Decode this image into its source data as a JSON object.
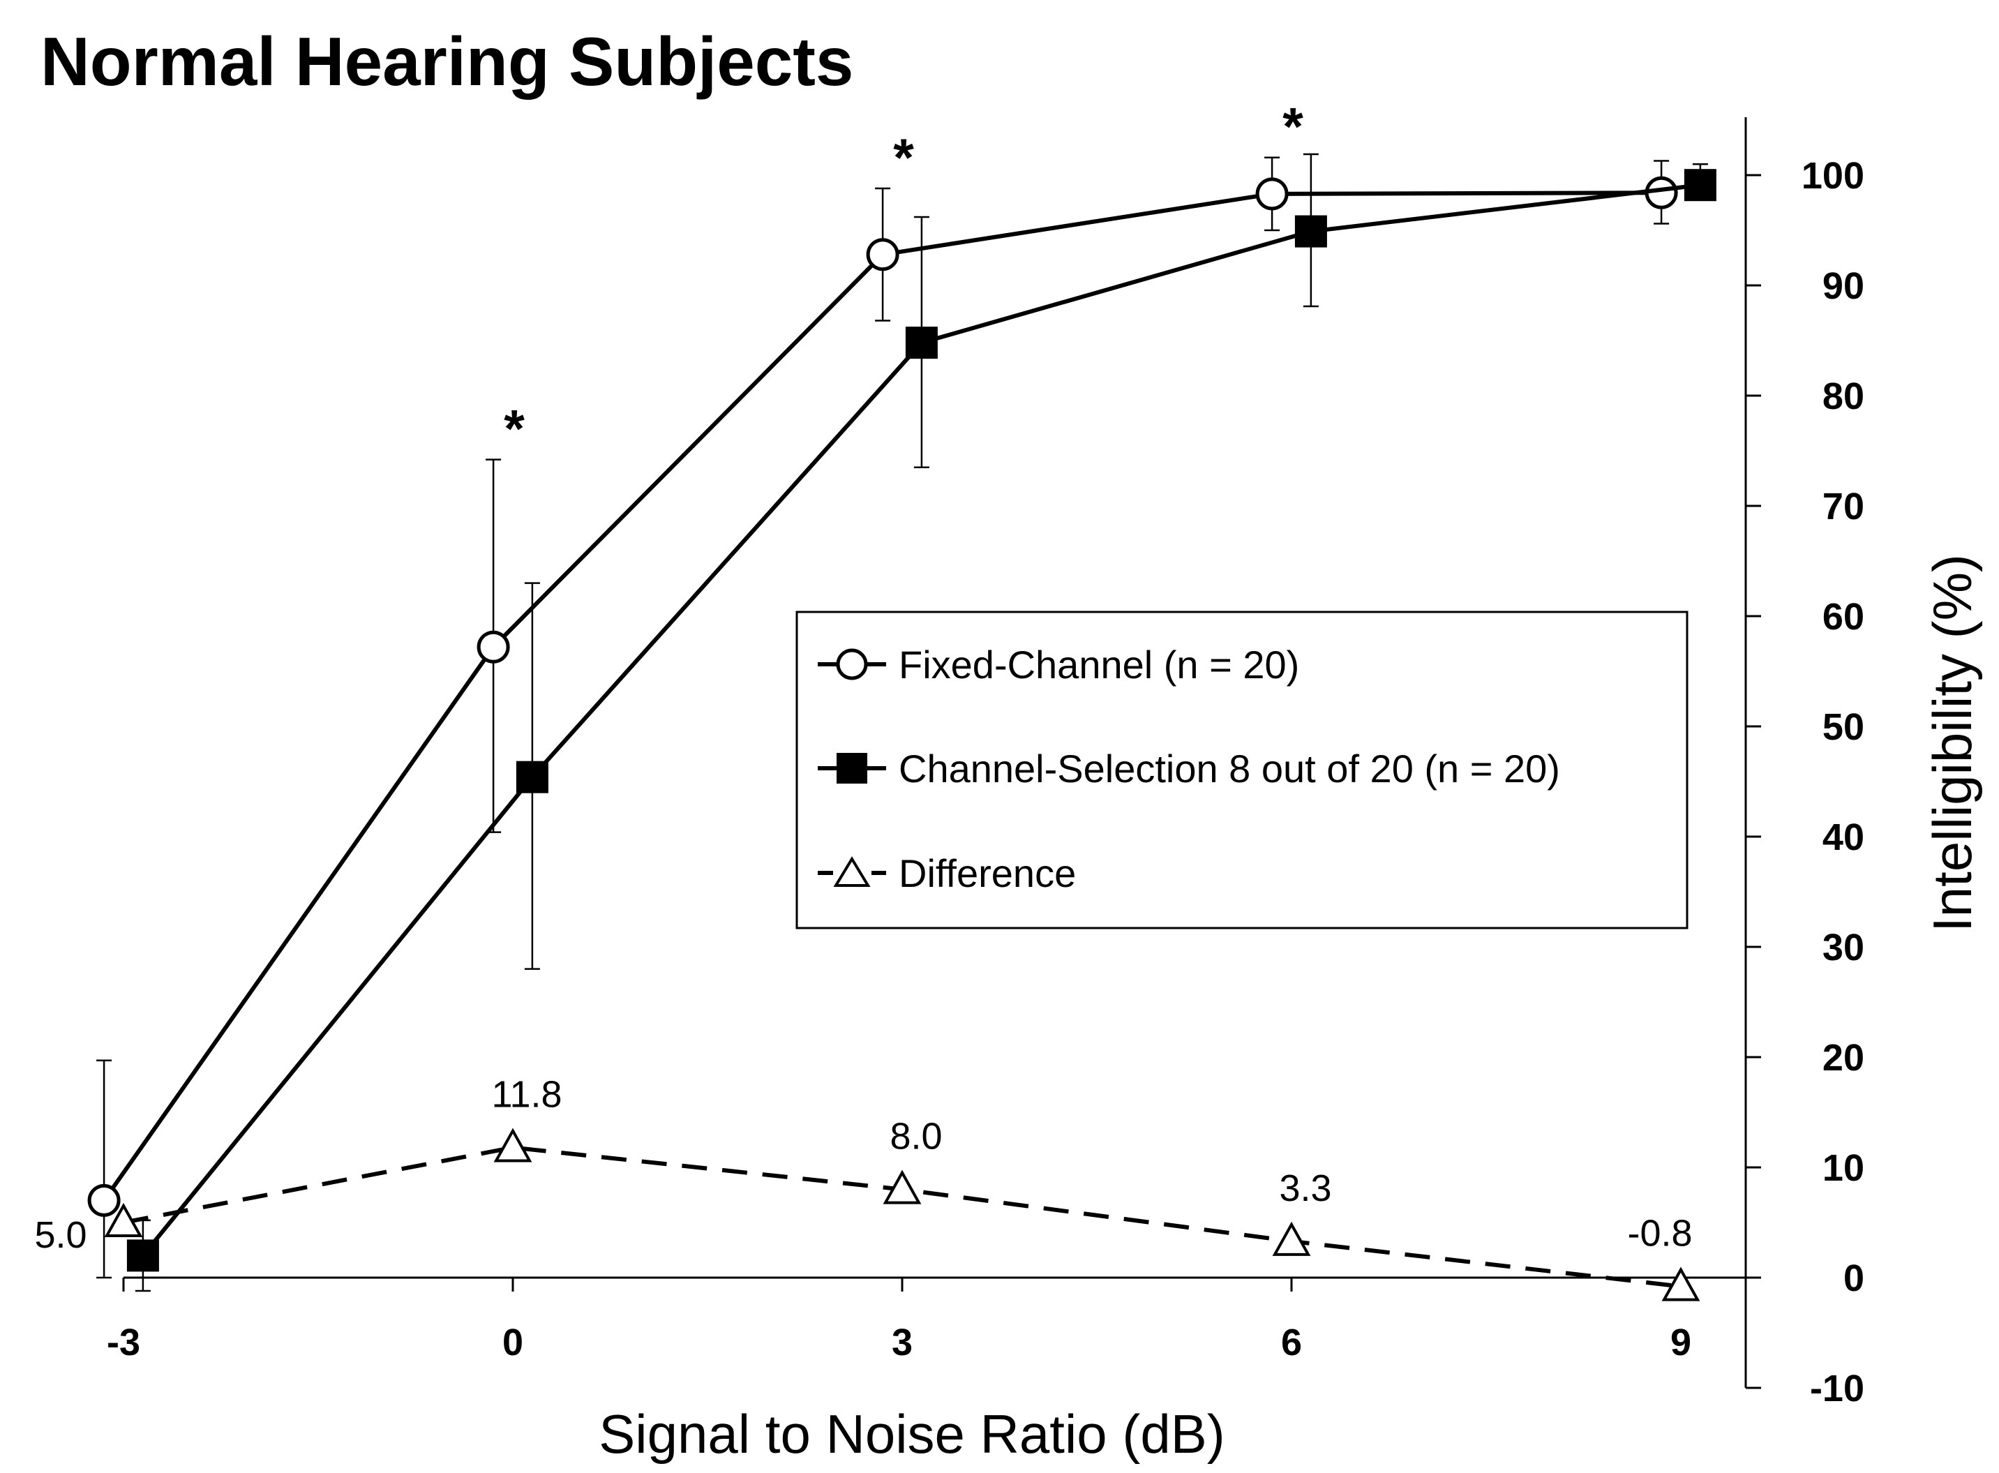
{
  "chart_data": {
    "type": "line",
    "title": "Normal Hearing Subjects",
    "xlabel": "Signal to Noise Ratio (dB)",
    "ylabel": "Intelligibility  (%)",
    "x": [
      -3,
      0,
      3,
      6,
      9
    ],
    "x_tick_labels": [
      "-3",
      "0",
      "3",
      "6",
      "9"
    ],
    "ylim": [
      -10,
      100
    ],
    "y_ticks": [
      -10,
      0,
      10,
      20,
      30,
      40,
      50,
      60,
      70,
      80,
      90,
      100
    ],
    "y_tick_labels": [
      "-10",
      "0",
      "10",
      "20",
      "30",
      "40",
      "50",
      "60",
      "70",
      "80",
      "90",
      "100"
    ],
    "series": [
      {
        "name": "Fixed-Channel (n = 20)",
        "marker": "open-circle",
        "line": "solid",
        "values": [
          7.0,
          57.2,
          92.8,
          98.3,
          98.4
        ],
        "err_low": [
          0,
          40.4,
          86.8,
          95.0,
          95.6
        ],
        "err_high": [
          19.7,
          74.2,
          98.8,
          101.6,
          101.3
        ]
      },
      {
        "name": "Channel-Selection 8 out of 20 (n = 20)",
        "marker": "filled-square",
        "line": "solid",
        "values": [
          2.0,
          45.4,
          84.8,
          94.9,
          99.1
        ],
        "err_low": [
          -1.2,
          28.0,
          73.5,
          88.1,
          98.0
        ],
        "err_high": [
          5.2,
          63.0,
          96.2,
          101.9,
          101.0
        ]
      },
      {
        "name": "Difference",
        "marker": "open-triangle",
        "line": "dashed",
        "values": [
          5.0,
          11.8,
          8.0,
          3.3,
          -0.8
        ],
        "data_labels": [
          "5.0",
          "11.8",
          "8.0",
          "3.3",
          "-0.8"
        ]
      }
    ],
    "annotations": [
      {
        "text": "*",
        "x": 0
      },
      {
        "text": "*",
        "x": 3
      },
      {
        "text": "*",
        "x": 6
      }
    ],
    "legend_position": "center-right"
  }
}
